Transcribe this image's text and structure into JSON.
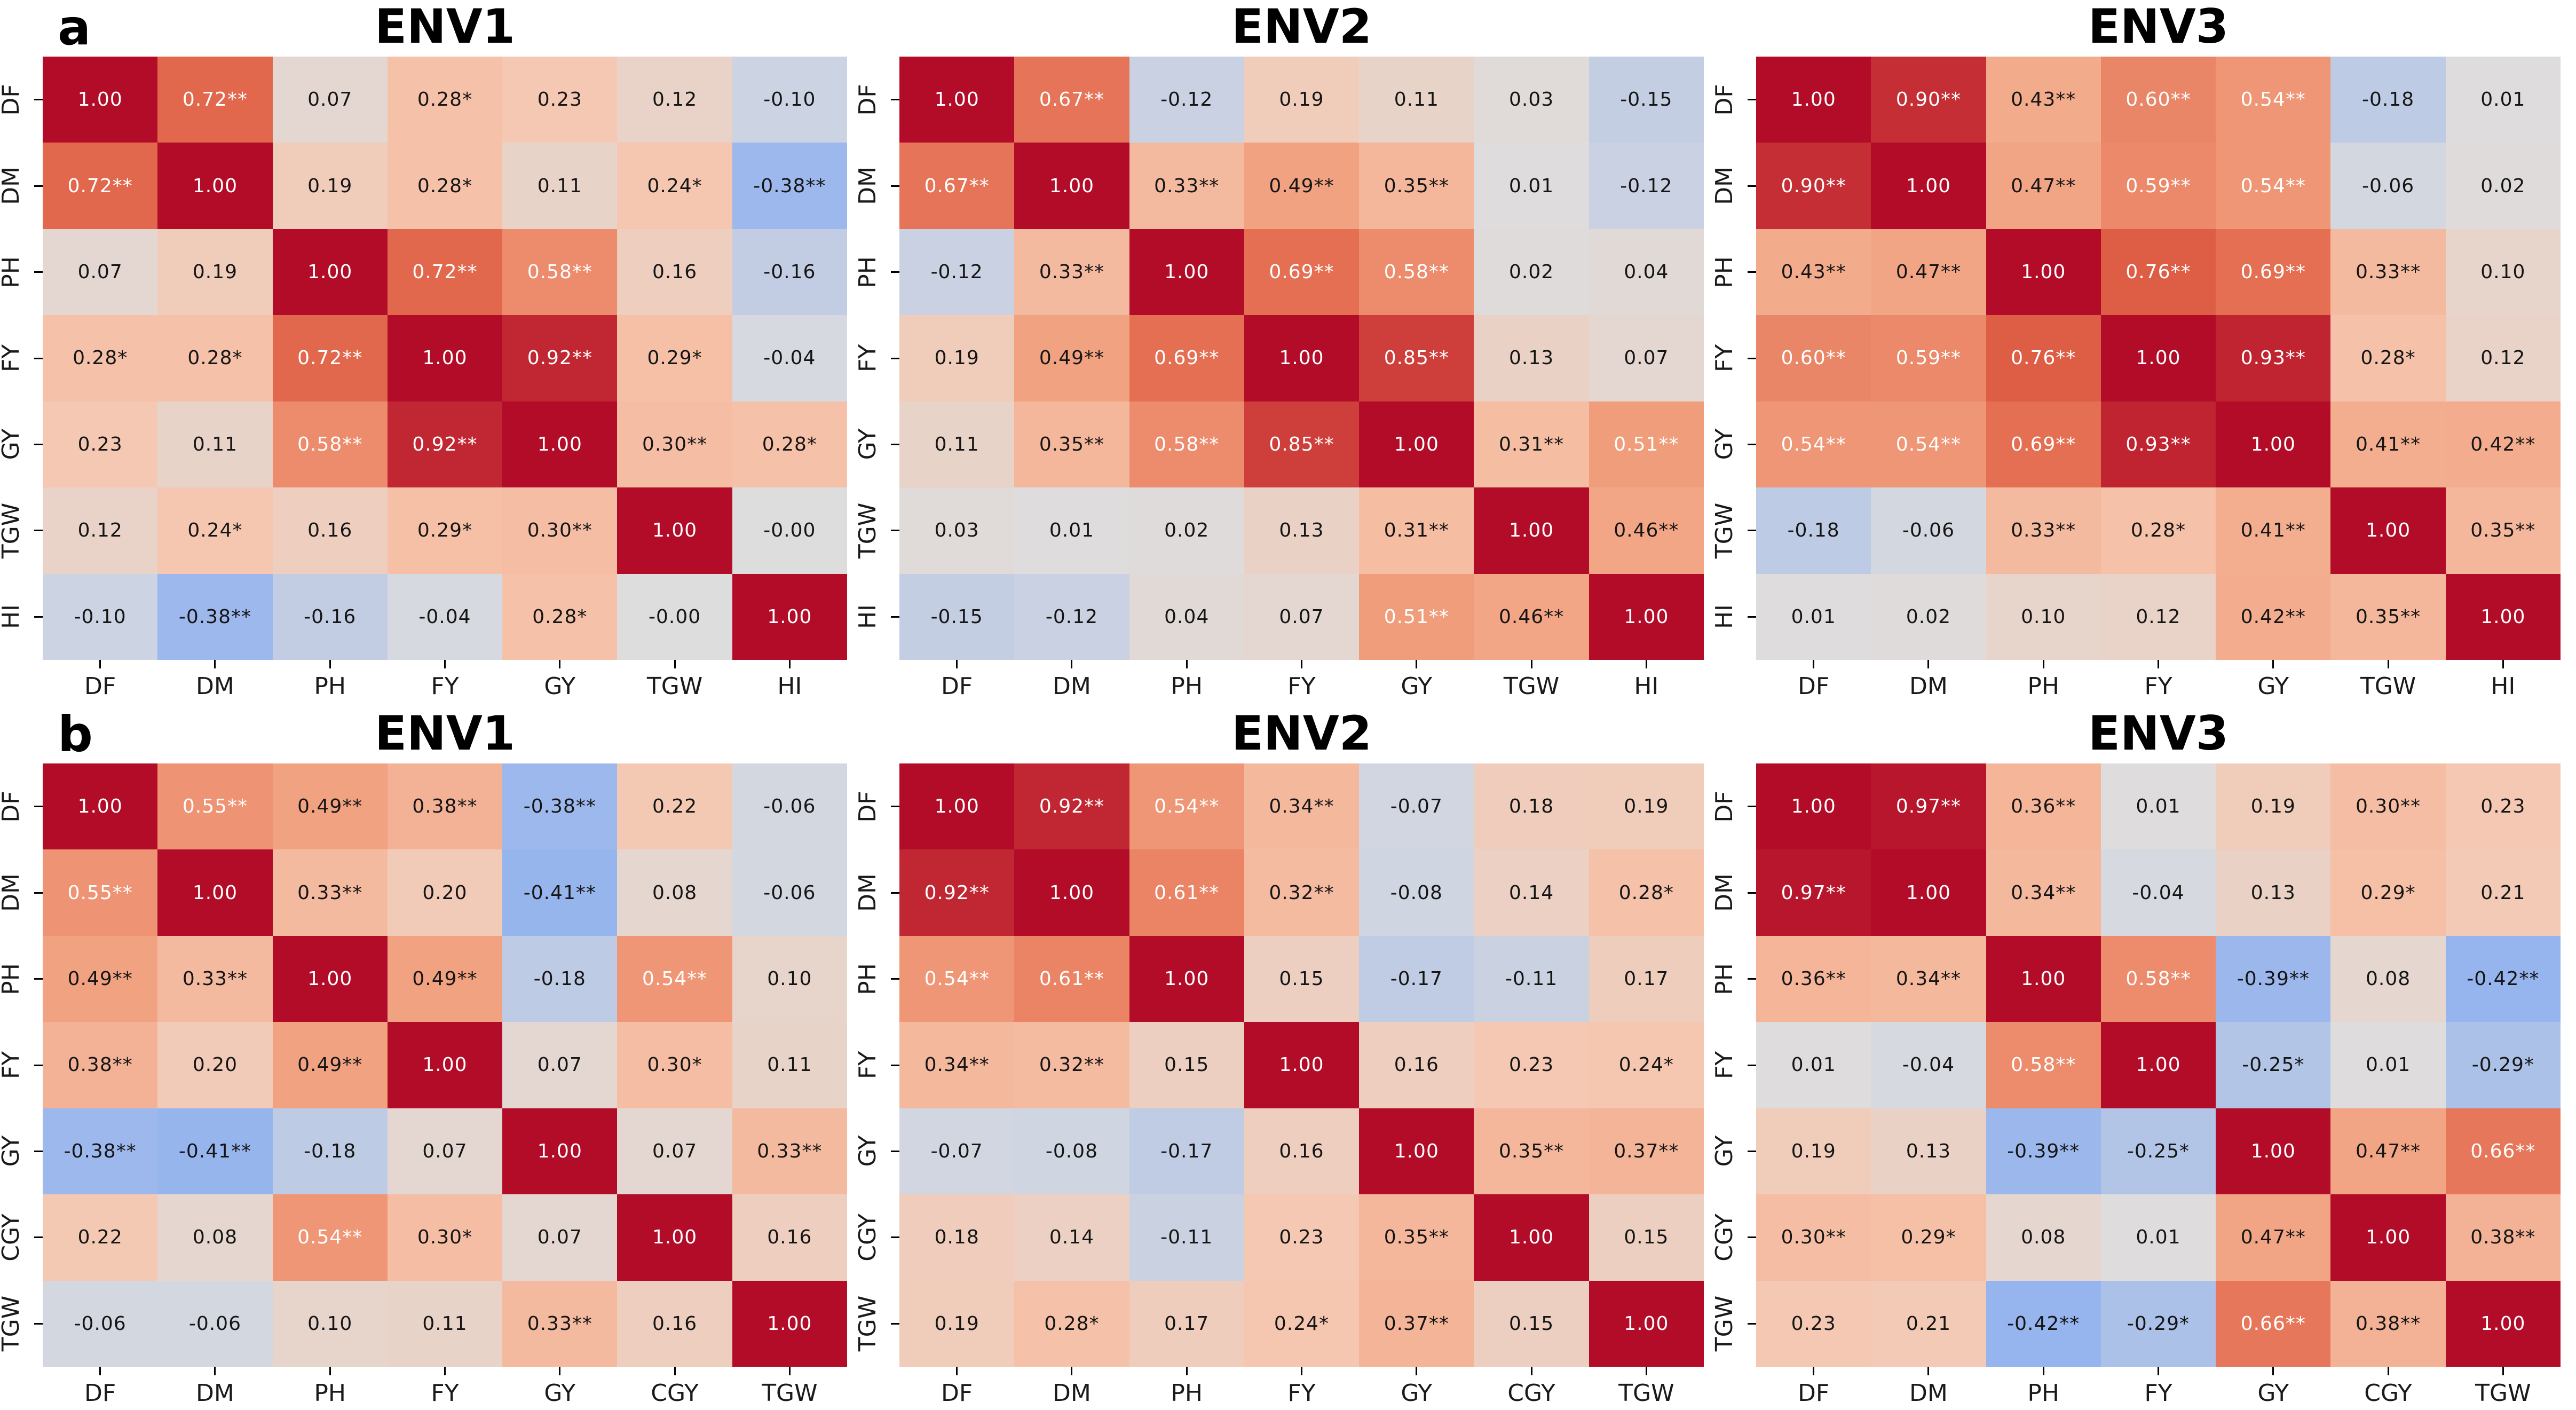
{
  "figure": {
    "group_labels": [
      "a",
      "b"
    ],
    "background": "#ffffff",
    "vmin": -1,
    "vmax": 1,
    "white_text_threshold": 0.5,
    "annot_text_colors": {
      "light": "#ffffff",
      "dark": "#151515"
    },
    "colormap_name": "coolwarm-diverging",
    "colormap_stops": [
      {
        "value": -1.0,
        "color": "#3b4cc0"
      },
      {
        "value": -0.5,
        "color": "#88acf0"
      },
      {
        "value": 0.0,
        "color": "#ddddde"
      },
      {
        "value": 0.25,
        "color": "#f6c6ae"
      },
      {
        "value": 0.5,
        "color": "#f1a07e"
      },
      {
        "value": 0.75,
        "color": "#e06046"
      },
      {
        "value": 1.0,
        "color": "#b20c28"
      }
    ]
  },
  "chart_data": [
    {
      "type": "heatmap",
      "panel_group": "a",
      "title": "ENV1",
      "x_labels": [
        "DF",
        "DM",
        "PH",
        "FY",
        "GY",
        "TGW",
        "HI"
      ],
      "y_labels": [
        "DF",
        "DM",
        "PH",
        "FY",
        "GY",
        "TGW",
        "HI"
      ],
      "cells": [
        [
          "1.00",
          "0.72**",
          "0.07",
          "0.28*",
          "0.23",
          "0.12",
          "-0.10"
        ],
        [
          "0.72**",
          "1.00",
          "0.19",
          "0.28*",
          "0.11",
          "0.24*",
          "-0.38**"
        ],
        [
          "0.07",
          "0.19",
          "1.00",
          "0.72**",
          "0.58**",
          "0.16",
          "-0.16"
        ],
        [
          "0.28*",
          "0.28*",
          "0.72**",
          "1.00",
          "0.92**",
          "0.29*",
          "-0.04"
        ],
        [
          "0.23",
          "0.11",
          "0.58**",
          "0.92**",
          "1.00",
          "0.30**",
          "0.28*"
        ],
        [
          "0.12",
          "0.24*",
          "0.16",
          "0.29*",
          "0.30**",
          "1.00",
          "-0.00"
        ],
        [
          "-0.10",
          "-0.38**",
          "-0.16",
          "-0.04",
          "0.28*",
          "-0.00",
          "1.00"
        ]
      ]
    },
    {
      "type": "heatmap",
      "panel_group": "a",
      "title": "ENV2",
      "x_labels": [
        "DF",
        "DM",
        "PH",
        "FY",
        "GY",
        "TGW",
        "HI"
      ],
      "y_labels": [
        "DF",
        "DM",
        "PH",
        "FY",
        "GY",
        "TGW",
        "HI"
      ],
      "cells": [
        [
          "1.00",
          "0.67**",
          "-0.12",
          "0.19",
          "0.11",
          "0.03",
          "-0.15"
        ],
        [
          "0.67**",
          "1.00",
          "0.33**",
          "0.49**",
          "0.35**",
          "0.01",
          "-0.12"
        ],
        [
          "-0.12",
          "0.33**",
          "1.00",
          "0.69**",
          "0.58**",
          "0.02",
          "0.04"
        ],
        [
          "0.19",
          "0.49**",
          "0.69**",
          "1.00",
          "0.85**",
          "0.13",
          "0.07"
        ],
        [
          "0.11",
          "0.35**",
          "0.58**",
          "0.85**",
          "1.00",
          "0.31**",
          "0.51**"
        ],
        [
          "0.03",
          "0.01",
          "0.02",
          "0.13",
          "0.31**",
          "1.00",
          "0.46**"
        ],
        [
          "-0.15",
          "-0.12",
          "0.04",
          "0.07",
          "0.51**",
          "0.46**",
          "1.00"
        ]
      ]
    },
    {
      "type": "heatmap",
      "panel_group": "a",
      "title": "ENV3",
      "x_labels": [
        "DF",
        "DM",
        "PH",
        "FY",
        "GY",
        "TGW",
        "HI"
      ],
      "y_labels": [
        "DF",
        "DM",
        "PH",
        "FY",
        "GY",
        "TGW",
        "HI"
      ],
      "cells": [
        [
          "1.00",
          "0.90**",
          "0.43**",
          "0.60**",
          "0.54**",
          "-0.18",
          "0.01"
        ],
        [
          "0.90**",
          "1.00",
          "0.47**",
          "0.59**",
          "0.54**",
          "-0.06",
          "0.02"
        ],
        [
          "0.43**",
          "0.47**",
          "1.00",
          "0.76**",
          "0.69**",
          "0.33**",
          "0.10"
        ],
        [
          "0.60**",
          "0.59**",
          "0.76**",
          "1.00",
          "0.93**",
          "0.28*",
          "0.12"
        ],
        [
          "0.54**",
          "0.54**",
          "0.69**",
          "0.93**",
          "1.00",
          "0.41**",
          "0.42**"
        ],
        [
          "-0.18",
          "-0.06",
          "0.33**",
          "0.28*",
          "0.41**",
          "1.00",
          "0.35**"
        ],
        [
          "0.01",
          "0.02",
          "0.10",
          "0.12",
          "0.42**",
          "0.35**",
          "1.00"
        ]
      ]
    },
    {
      "type": "heatmap",
      "panel_group": "b",
      "title": "ENV1",
      "x_labels": [
        "DF",
        "DM",
        "PH",
        "FY",
        "GY",
        "CGY",
        "TGW"
      ],
      "y_labels": [
        "DF",
        "DM",
        "PH",
        "FY",
        "GY",
        "CGY",
        "TGW"
      ],
      "cells": [
        [
          "1.00",
          "0.55**",
          "0.49**",
          "0.38**",
          "-0.38**",
          "0.22",
          "-0.06"
        ],
        [
          "0.55**",
          "1.00",
          "0.33**",
          "0.20",
          "-0.41**",
          "0.08",
          "-0.06"
        ],
        [
          "0.49**",
          "0.33**",
          "1.00",
          "0.49**",
          "-0.18",
          "0.54**",
          "0.10"
        ],
        [
          "0.38**",
          "0.20",
          "0.49**",
          "1.00",
          "0.07",
          "0.30*",
          "0.11"
        ],
        [
          "-0.38**",
          "-0.41**",
          "-0.18",
          "0.07",
          "1.00",
          "0.07",
          "0.33**"
        ],
        [
          "0.22",
          "0.08",
          "0.54**",
          "0.30*",
          "0.07",
          "1.00",
          "0.16"
        ],
        [
          "-0.06",
          "-0.06",
          "0.10",
          "0.11",
          "0.33**",
          "0.16",
          "1.00"
        ]
      ]
    },
    {
      "type": "heatmap",
      "panel_group": "b",
      "title": "ENV2",
      "x_labels": [
        "DF",
        "DM",
        "PH",
        "FY",
        "GY",
        "CGY",
        "TGW"
      ],
      "y_labels": [
        "DF",
        "DM",
        "PH",
        "FY",
        "GY",
        "CGY",
        "TGW"
      ],
      "cells": [
        [
          "1.00",
          "0.92**",
          "0.54**",
          "0.34**",
          "-0.07",
          "0.18",
          "0.19"
        ],
        [
          "0.92**",
          "1.00",
          "0.61**",
          "0.32**",
          "-0.08",
          "0.14",
          "0.28*"
        ],
        [
          "0.54**",
          "0.61**",
          "1.00",
          "0.15",
          "-0.17",
          "-0.11",
          "0.17"
        ],
        [
          "0.34**",
          "0.32**",
          "0.15",
          "1.00",
          "0.16",
          "0.23",
          "0.24*"
        ],
        [
          "-0.07",
          "-0.08",
          "-0.17",
          "0.16",
          "1.00",
          "0.35**",
          "0.37**"
        ],
        [
          "0.18",
          "0.14",
          "-0.11",
          "0.23",
          "0.35**",
          "1.00",
          "0.15"
        ],
        [
          "0.19",
          "0.28*",
          "0.17",
          "0.24*",
          "0.37**",
          "0.15",
          "1.00"
        ]
      ]
    },
    {
      "type": "heatmap",
      "panel_group": "b",
      "title": "ENV3",
      "x_labels": [
        "DF",
        "DM",
        "PH",
        "FY",
        "GY",
        "CGY",
        "TGW"
      ],
      "y_labels": [
        "DF",
        "DM",
        "PH",
        "FY",
        "GY",
        "CGY",
        "TGW"
      ],
      "cells": [
        [
          "1.00",
          "0.97**",
          "0.36**",
          "0.01",
          "0.19",
          "0.30**",
          "0.23"
        ],
        [
          "0.97**",
          "1.00",
          "0.34**",
          "-0.04",
          "0.13",
          "0.29*",
          "0.21"
        ],
        [
          "0.36**",
          "0.34**",
          "1.00",
          "0.58**",
          "-0.39**",
          "0.08",
          "-0.42**"
        ],
        [
          "0.01",
          "-0.04",
          "0.58**",
          "1.00",
          "-0.25*",
          "0.01",
          "-0.29*"
        ],
        [
          "0.19",
          "0.13",
          "-0.39**",
          "-0.25*",
          "1.00",
          "0.47**",
          "0.66**"
        ],
        [
          "0.30**",
          "0.29*",
          "0.08",
          "0.01",
          "0.47**",
          "1.00",
          "0.38**"
        ],
        [
          "0.23",
          "0.21",
          "-0.42**",
          "-0.29*",
          "0.66**",
          "0.38**",
          "1.00"
        ]
      ]
    }
  ]
}
